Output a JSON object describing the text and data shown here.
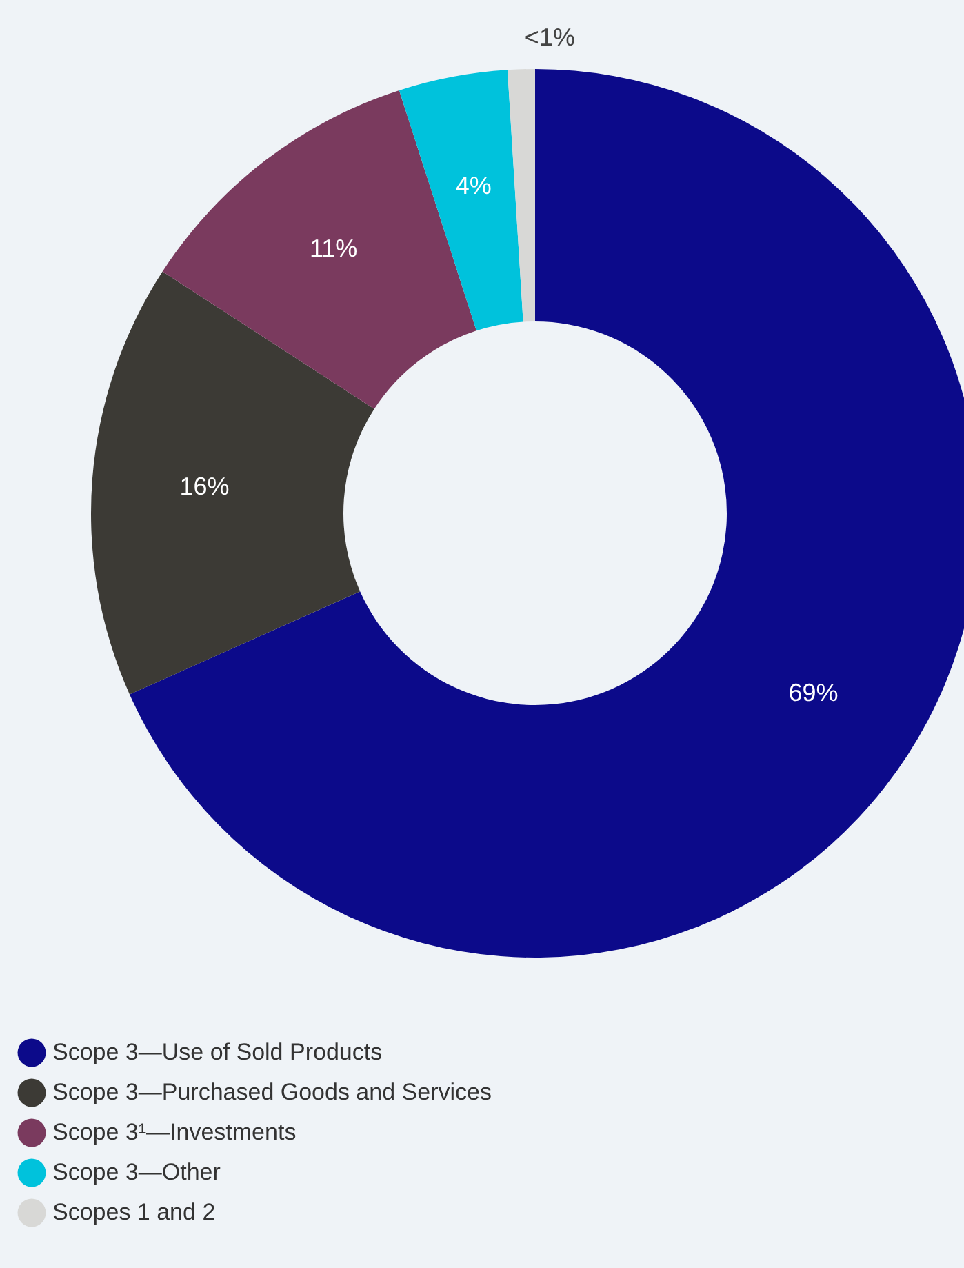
{
  "chart_data": {
    "type": "donut",
    "categories": [
      "Scope 3—Use of Sold Products",
      "Scope 3—Purchased Goods and Services",
      "Scope 3¹—Investments",
      "Scope 3—Other",
      "Scopes 1 and 2"
    ],
    "values": [
      69,
      16,
      11,
      4,
      1
    ],
    "value_labels": [
      "69%",
      "16%",
      "11%",
      "4%",
      "<1%"
    ],
    "colors": [
      "#0c0a8a",
      "#3c3a35",
      "#7a3a5e",
      "#00c2dc",
      "#d8d8d6"
    ],
    "legend": "bottom left"
  }
}
